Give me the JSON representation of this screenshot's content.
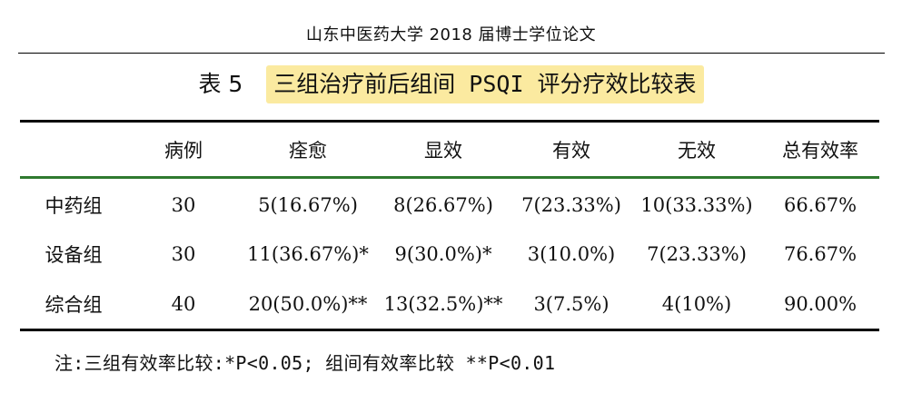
{
  "header": {
    "text": "山东中医药大学 2018 届博士学位论文"
  },
  "caption": {
    "number": "表 5",
    "title": "三组治疗前后组间 PSQI 评分疗效比较表",
    "highlight_color": "#fbeaa0"
  },
  "table": {
    "columns": [
      "",
      "病例",
      "痊愈",
      "显效",
      "有效",
      "无效",
      "总有效率"
    ],
    "rows": [
      [
        "中药组",
        "30",
        "5(16.67%)",
        "8(26.67%)",
        "7(23.33%)",
        "10(33.33%)",
        "66.67%"
      ],
      [
        "设备组",
        "30",
        "11(36.67%)*",
        "9(30.0%)*",
        "3(10.0%)",
        "7(23.33%)",
        "76.67%"
      ],
      [
        "综合组",
        "40",
        "20(50.0%)**",
        "13(32.5%)**",
        "3(7.5%)",
        "4(10%)",
        "90.00%"
      ]
    ],
    "header_rule_color": "#2f7a2f"
  },
  "note": "注:三组有效率比较:*P<0.05; 组间有效率比较 **P<0.01"
}
